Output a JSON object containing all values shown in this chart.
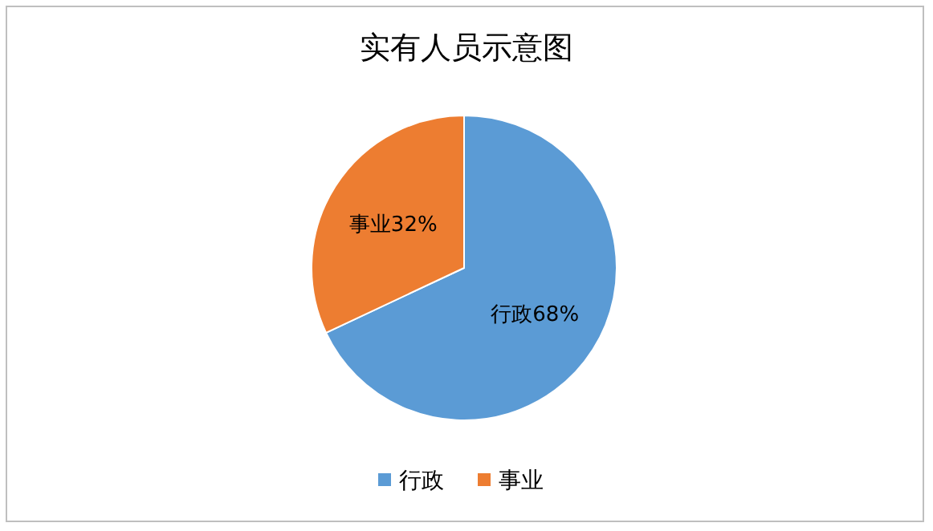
{
  "chart_data": {
    "type": "pie",
    "title": "实有人员示意图",
    "categories": [
      "行政",
      "事业"
    ],
    "values": [
      68,
      32
    ],
    "colors": [
      "#5b9bd5",
      "#ed7d31"
    ],
    "value_labels": [
      "行政68%",
      "事业32%"
    ],
    "legend": "bottom"
  }
}
